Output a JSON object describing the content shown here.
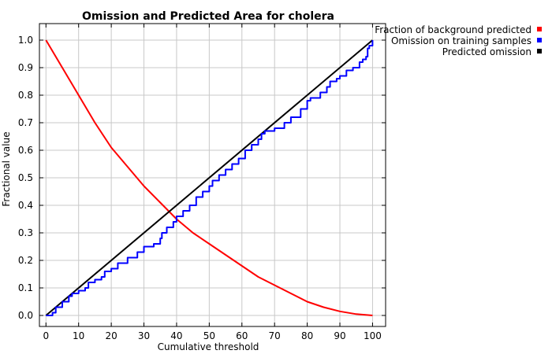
{
  "chart_data": {
    "type": "line",
    "title": "Omission and Predicted Area for cholera",
    "xlabel": "Cumulative threshold",
    "ylabel": "Fractional value",
    "xlim": [
      -2,
      104
    ],
    "ylim": [
      -0.04,
      1.06
    ],
    "xticks": [
      0,
      10,
      20,
      30,
      40,
      50,
      60,
      70,
      80,
      90,
      100
    ],
    "xtick_labels": [
      "0",
      "10",
      "20",
      "30",
      "40",
      "50",
      "60",
      "70",
      "80",
      "90",
      "100"
    ],
    "yticks": [
      0.0,
      0.1,
      0.2,
      0.3,
      0.4,
      0.5,
      0.6,
      0.7,
      0.8,
      0.9,
      1.0
    ],
    "ytick_labels": [
      "0.0",
      "0.1",
      "0.2",
      "0.3",
      "0.4",
      "0.5",
      "0.6",
      "0.7",
      "0.8",
      "0.9",
      "1.0"
    ],
    "grid": true,
    "legend_position": "outside-top-right",
    "series": [
      {
        "name": "Fraction of background predicted",
        "color": "#ff0000",
        "x": [
          0,
          5,
          10,
          15,
          20,
          25,
          30,
          35,
          40,
          45,
          50,
          55,
          60,
          65,
          70,
          75,
          80,
          85,
          90,
          95,
          100
        ],
        "y": [
          1.0,
          0.9,
          0.8,
          0.7,
          0.61,
          0.54,
          0.47,
          0.41,
          0.35,
          0.3,
          0.26,
          0.22,
          0.18,
          0.14,
          0.11,
          0.08,
          0.05,
          0.03,
          0.015,
          0.005,
          0.0
        ]
      },
      {
        "name": "Omission on training samples",
        "color": "#0000ff",
        "x": [
          0,
          2,
          3,
          5,
          7,
          8,
          10,
          12,
          13,
          15,
          17,
          18,
          20,
          22,
          25,
          28,
          30,
          33,
          35,
          35.5,
          37,
          39,
          40,
          42,
          44,
          46,
          48,
          50,
          51,
          53,
          55,
          57,
          59,
          61,
          63,
          65,
          66,
          67,
          70,
          73,
          75,
          78,
          80,
          81,
          84,
          86,
          87,
          89,
          90,
          92,
          94,
          95,
          96,
          97,
          98,
          98.5,
          99,
          100
        ],
        "y": [
          0.0,
          0.01,
          0.03,
          0.05,
          0.07,
          0.08,
          0.09,
          0.1,
          0.12,
          0.13,
          0.14,
          0.16,
          0.17,
          0.19,
          0.21,
          0.23,
          0.25,
          0.26,
          0.28,
          0.3,
          0.32,
          0.34,
          0.36,
          0.38,
          0.4,
          0.43,
          0.45,
          0.47,
          0.49,
          0.51,
          0.53,
          0.55,
          0.57,
          0.6,
          0.62,
          0.64,
          0.66,
          0.67,
          0.68,
          0.7,
          0.72,
          0.75,
          0.78,
          0.79,
          0.81,
          0.83,
          0.85,
          0.86,
          0.87,
          0.89,
          0.9,
          0.9,
          0.92,
          0.93,
          0.94,
          0.97,
          0.98,
          1.0
        ]
      },
      {
        "name": "Predicted omission",
        "color": "#000000",
        "x": [
          0,
          100
        ],
        "y": [
          0.0,
          1.0
        ]
      }
    ]
  }
}
